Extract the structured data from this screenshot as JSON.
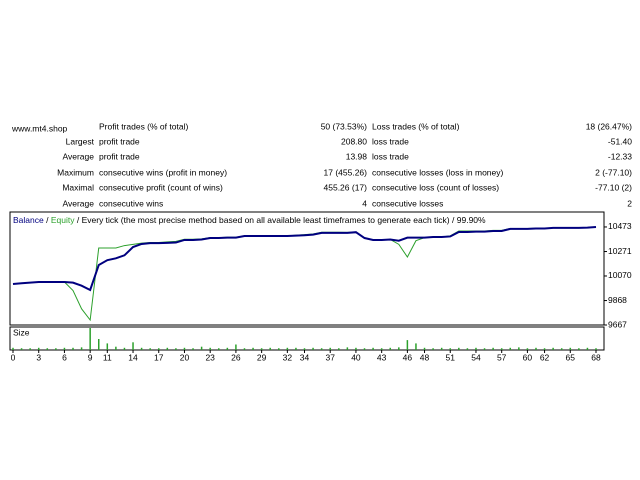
{
  "watermark": "www.mt4.shop",
  "table": {
    "rows": [
      {
        "left": "Profit trades (% of total)",
        "left_value": "50 (73.53%)",
        "right": "Loss trades (% of total)",
        "right_value": "18 (26.47%)"
      },
      {
        "label": "Largest",
        "left": "profit trade",
        "left_value": "208.80",
        "right": "loss trade",
        "right_value": "-51.40"
      },
      {
        "label": "Average",
        "left": "profit trade",
        "left_value": "13.98",
        "right": "loss trade",
        "right_value": "-12.33"
      },
      {
        "label": "Maximum",
        "left": "consecutive wins (profit in money)",
        "left_value": "17 (455.26)",
        "right": "consecutive losses (loss in money)",
        "right_value": "2 (-77.10)"
      },
      {
        "label": "Maximal",
        "left": "consecutive profit (count of wins)",
        "left_value": "455.26 (17)",
        "right": "consecutive loss (count of losses)",
        "right_value": "-77.10 (2)"
      },
      {
        "label": "Average",
        "left": "consecutive wins",
        "left_value": "4",
        "right": "consecutive losses",
        "right_value": "2"
      }
    ]
  },
  "chart_data": {
    "type": "line",
    "separator": "/",
    "note": "Every tick (the most precise method based on all available least timeframes to generate each tick)",
    "quality": "99.90%",
    "xlim": [
      0,
      68
    ],
    "xticks": [
      0,
      3,
      6,
      9,
      11,
      14,
      17,
      20,
      23,
      26,
      29,
      32,
      34,
      37,
      40,
      43,
      46,
      48,
      51,
      54,
      57,
      60,
      62,
      65,
      68
    ],
    "ylim": [
      9667,
      10596
    ],
    "yticks": [
      9667,
      9868,
      10070,
      10271,
      10473
    ],
    "series": [
      {
        "name": "Balance",
        "color": "#00007f",
        "values": [
          10004,
          10010,
          10015,
          10020,
          10020,
          10020,
          10020,
          10015,
          9990,
          9955,
          10160,
          10200,
          10215,
          10240,
          10308,
          10333,
          10340,
          10340,
          10342,
          10345,
          10366,
          10366,
          10370,
          10382,
          10382,
          10385,
          10385,
          10399,
          10399,
          10399,
          10399,
          10399,
          10399,
          10402,
          10405,
          10410,
          10424,
          10424,
          10424,
          10424,
          10430,
          10382,
          10366,
          10366,
          10370,
          10360,
          10385,
          10385,
          10385,
          10390,
          10390,
          10395,
          10432,
          10432,
          10435,
          10435,
          10440,
          10440,
          10457,
          10457,
          10457,
          10460,
          10460,
          10465,
          10465,
          10465,
          10465,
          10468,
          10473
        ]
      },
      {
        "name": "Equity",
        "color": "#2ca02c",
        "values": [
          10004,
          10010,
          10015,
          10020,
          10020,
          10020,
          10020,
          9950,
          9800,
          9708,
          10300,
          10300,
          10300,
          10320,
          10330,
          10340,
          10345,
          10345,
          10350,
          10355,
          10372,
          10372,
          10375,
          10385,
          10385,
          10388,
          10388,
          10400,
          10400,
          10400,
          10400,
          10400,
          10400,
          10405,
          10410,
          10415,
          10430,
          10430,
          10430,
          10428,
          10430,
          10382,
          10366,
          10366,
          10370,
          10330,
          10226,
          10360,
          10385,
          10390,
          10390,
          10400,
          10440,
          10440,
          10440,
          10440,
          10445,
          10445,
          10460,
          10460,
          10460,
          10462,
          10462,
          10466,
          10466,
          10466,
          10466,
          10469,
          10473
        ]
      }
    ],
    "size": {
      "name": "Size",
      "color": "#2ca02c",
      "ylim": [
        0,
        1
      ],
      "values": [
        0.1,
        0.08,
        0.08,
        0.1,
        0.08,
        0.08,
        0.1,
        0.1,
        0.12,
        1.0,
        0.5,
        0.3,
        0.15,
        0.1,
        0.35,
        0.1,
        0.08,
        0.08,
        0.1,
        0.08,
        0.1,
        0.08,
        0.15,
        0.1,
        0.08,
        0.1,
        0.25,
        0.08,
        0.1,
        0.08,
        0.1,
        0.08,
        0.1,
        0.1,
        0.08,
        0.1,
        0.08,
        0.1,
        0.08,
        0.12,
        0.1,
        0.08,
        0.1,
        0.08,
        0.1,
        0.12,
        0.45,
        0.3,
        0.1,
        0.08,
        0.1,
        0.08,
        0.1,
        0.08,
        0.1,
        0.08,
        0.1,
        0.08,
        0.1,
        0.12,
        0.08,
        0.1,
        0.08,
        0.1,
        0.08,
        0.1,
        0.08,
        0.1,
        0.08
      ]
    }
  }
}
